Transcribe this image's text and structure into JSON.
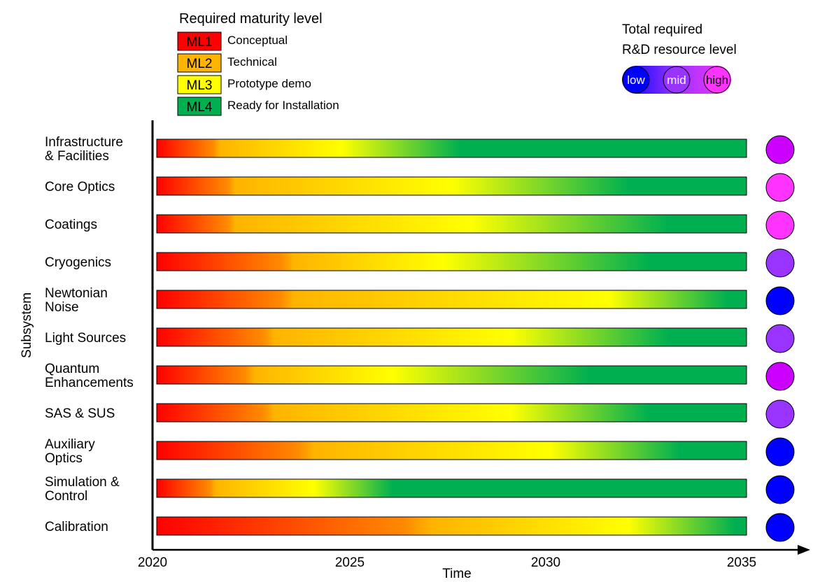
{
  "chart_data": {
    "type": "bar",
    "title": "",
    "xlabel": "Time",
    "ylabel": "Subsystem",
    "xlim": [
      2020,
      2035
    ],
    "x_ticks": [
      "2020",
      "2025",
      "2030",
      "2035"
    ],
    "maturity_legend": {
      "title": "Required maturity level",
      "entries": [
        {
          "code": "ML1",
          "label": "Conceptual",
          "color": "#ff0000"
        },
        {
          "code": "ML2",
          "label": "Technical",
          "color": "#ffb400"
        },
        {
          "code": "ML3",
          "label": "Prototype demo",
          "color": "#ffff00"
        },
        {
          "code": "ML4",
          "label": "Ready for Installation",
          "color": "#00b050"
        }
      ]
    },
    "resource_legend": {
      "title_lines": [
        "Total required",
        "R&D resource level"
      ],
      "levels": [
        {
          "label": "low",
          "color": "#0000ff"
        },
        {
          "label": "mid",
          "color": "#9933ff"
        },
        {
          "label": "high",
          "color": "#ff33ff"
        }
      ]
    },
    "categories": [
      "Infrastructure & Facilities",
      "Core Optics",
      "Coatings",
      "Cryogenics",
      "Newtonian Noise",
      "Light Sources",
      "Quantum Enhancements",
      "SAS & SUS",
      "Auxiliary Optics",
      "Simulation & Control",
      "Calibration"
    ],
    "series": [
      {
        "lines": [
          "Infrastructure",
          "& Facilities"
        ],
        "ml2_year": 2021.6,
        "ml3_year": 2024.7,
        "ml4_year": 2027.7,
        "resource": "mid-high",
        "resource_color": "#cc00ff"
      },
      {
        "lines": [
          "Core Optics"
        ],
        "ml2_year": 2022.0,
        "ml3_year": 2027.5,
        "ml4_year": 2032.0,
        "resource": "high",
        "resource_color": "#ff33ff"
      },
      {
        "lines": [
          "Coatings"
        ],
        "ml2_year": 2022.0,
        "ml3_year": 2028.0,
        "ml4_year": 2033.0,
        "resource": "high",
        "resource_color": "#ff33ff"
      },
      {
        "lines": [
          "Cryogenics"
        ],
        "ml2_year": 2023.5,
        "ml3_year": 2027.3,
        "ml4_year": 2032.5,
        "resource": "mid",
        "resource_color": "#9933ff"
      },
      {
        "lines": [
          "Newtonian",
          "Noise"
        ],
        "ml2_year": 2023.5,
        "ml3_year": 2031.5,
        "ml4_year": 2034.5,
        "resource": "low",
        "resource_color": "#0000ff"
      },
      {
        "lines": [
          "Light Sources"
        ],
        "ml2_year": 2023.0,
        "ml3_year": 2029.0,
        "ml4_year": 2033.0,
        "resource": "mid",
        "resource_color": "#9933ff"
      },
      {
        "lines": [
          "Quantum",
          "Enhancements"
        ],
        "ml2_year": 2022.5,
        "ml3_year": 2026.0,
        "ml4_year": 2031.0,
        "resource": "mid-high",
        "resource_color": "#cc00ff"
      },
      {
        "lines": [
          "SAS & SUS"
        ],
        "ml2_year": 2023.0,
        "ml3_year": 2029.0,
        "ml4_year": 2032.5,
        "resource": "mid",
        "resource_color": "#9933ff"
      },
      {
        "lines": [
          "Auxiliary",
          "Optics"
        ],
        "ml2_year": 2024.0,
        "ml3_year": 2030.0,
        "ml4_year": 2033.3,
        "resource": "low",
        "resource_color": "#0000ff"
      },
      {
        "lines": [
          "Simulation &",
          "Control"
        ],
        "ml2_year": 2021.5,
        "ml3_year": 2024.0,
        "ml4_year": 2026.0,
        "resource": "low",
        "resource_color": "#0000ff"
      },
      {
        "lines": [
          "Calibration"
        ],
        "ml2_year": 2027.0,
        "ml3_year": 2032.0,
        "ml4_year": 2034.7,
        "resource": "low",
        "resource_color": "#0000ff"
      }
    ]
  }
}
